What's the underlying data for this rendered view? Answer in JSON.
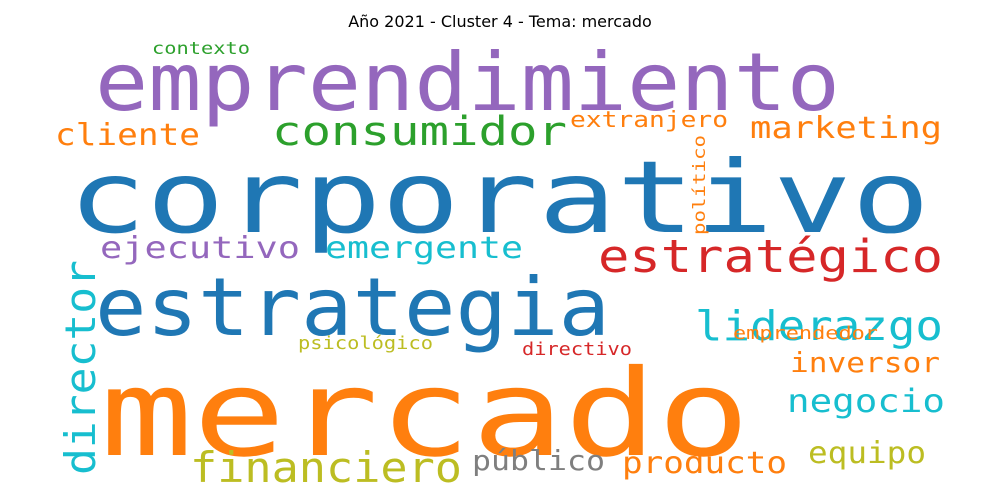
{
  "chart_data": {
    "type": "wordcloud",
    "title": "Año 2021 - Cluster 4 - Tema: mercado",
    "words": [
      {
        "text": "corporativo",
        "color": "#1f77b4"
      },
      {
        "text": "mercado",
        "color": "#ff7f0e"
      },
      {
        "text": "emprendimiento",
        "color": "#9467bd"
      },
      {
        "text": "estrategia",
        "color": "#1f77b4"
      },
      {
        "text": "estratégico",
        "color": "#d62728"
      },
      {
        "text": "consumidor",
        "color": "#2ca02c"
      },
      {
        "text": "liderazgo",
        "color": "#17becf"
      },
      {
        "text": "director",
        "color": "#17becf"
      },
      {
        "text": "financiero",
        "color": "#bcbd22"
      },
      {
        "text": "negocio",
        "color": "#17becf"
      },
      {
        "text": "marketing",
        "color": "#ff7f0e"
      },
      {
        "text": "ejecutivo",
        "color": "#9467bd"
      },
      {
        "text": "emergente",
        "color": "#17becf"
      },
      {
        "text": "cliente",
        "color": "#ff7f0e"
      },
      {
        "text": "inversor",
        "color": "#ff7f0e"
      },
      {
        "text": "equipo",
        "color": "#bcbd22"
      },
      {
        "text": "producto",
        "color": "#ff7f0e"
      },
      {
        "text": "público",
        "color": "#7f7f7f"
      },
      {
        "text": "extranjero",
        "color": "#ff7f0e"
      },
      {
        "text": "emprendedor",
        "color": "#ff7f0e"
      },
      {
        "text": "psicológico",
        "color": "#bcbd22"
      },
      {
        "text": "directivo",
        "color": "#d62728"
      },
      {
        "text": "contexto",
        "color": "#2ca02c"
      },
      {
        "text": "político",
        "color": "#ff7f0e"
      }
    ]
  }
}
